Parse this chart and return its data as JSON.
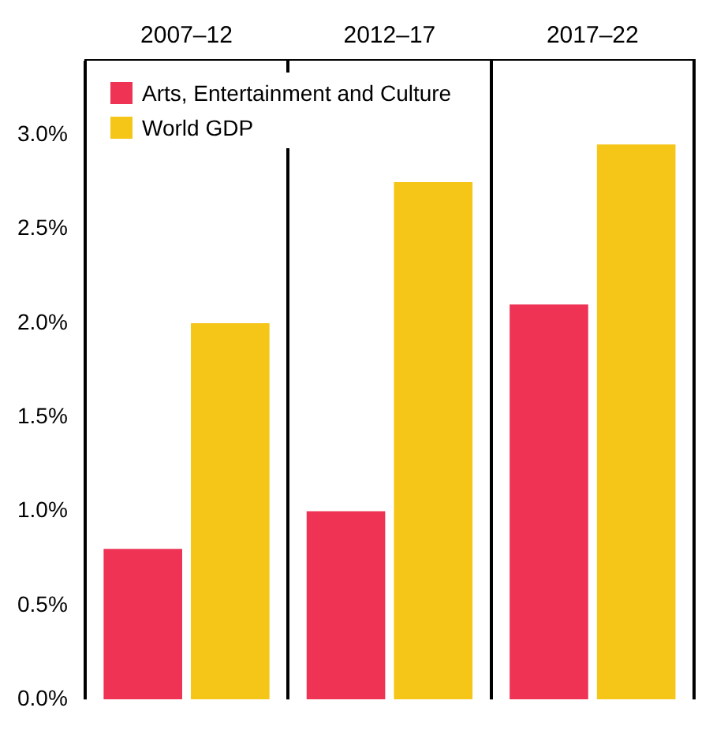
{
  "chart_data": {
    "type": "bar",
    "categories": [
      "2007–12",
      "2012–17",
      "2017–22"
    ],
    "series": [
      {
        "name": "Arts, Entertainment and Culture",
        "color": "#ee3355",
        "values": [
          0.8,
          1.0,
          2.1
        ]
      },
      {
        "name": "World GDP",
        "color": "#f5c518",
        "values": [
          2.0,
          2.75,
          2.95
        ]
      }
    ],
    "ylim": [
      0,
      3.4
    ],
    "yticks": [
      {
        "value": 0,
        "label": "0.0%"
      },
      {
        "value": 0.5,
        "label": "0.5%"
      },
      {
        "value": 1,
        "label": "1.0%"
      },
      {
        "value": 1.5,
        "label": "1.5%"
      },
      {
        "value": 2,
        "label": "2.0%"
      },
      {
        "value": 2.5,
        "label": "2.5%"
      },
      {
        "value": 3,
        "label": "3.0%"
      }
    ],
    "grid": "x",
    "legend": "top left"
  }
}
